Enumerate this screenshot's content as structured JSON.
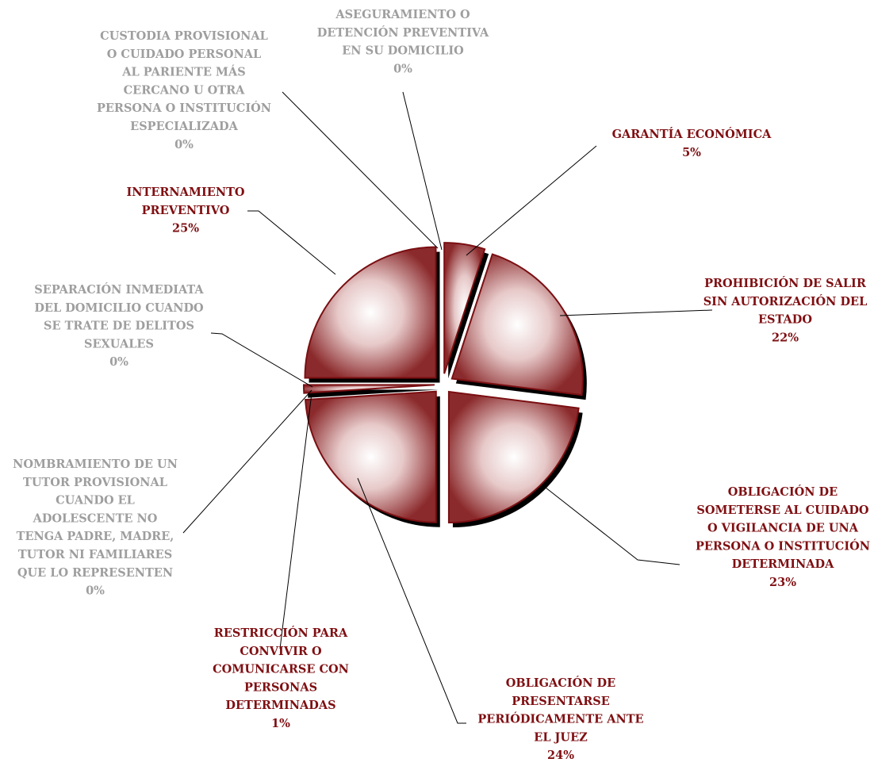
{
  "chart_data": {
    "type": "pie",
    "title": "",
    "style": "exploded 3d pie with radial gradient fill, leader-line callout labels",
    "colors": {
      "slice_edge": "#7a0f12",
      "slice_dark": "#8b2a2c",
      "slice_light": "#ffffff",
      "shadow": "#000000",
      "label_nonzero": "#7f0f12",
      "label_zero": "#9e9e9e",
      "leader": "#000000"
    },
    "slices": [
      {
        "key": "garantia",
        "lines": [
          "GARANTÍA ECONÓMICA"
        ],
        "pct_label": "5%",
        "value": 5
      },
      {
        "key": "prohibicion",
        "lines": [
          "PROHIBICIÓN DE SALIR",
          "SIN AUTORIZACIÓN DEL",
          "ESTADO"
        ],
        "pct_label": "22%",
        "value": 22
      },
      {
        "key": "obligacion_cuidado",
        "lines": [
          "OBLIGACIÓN DE",
          "SOMETERSE AL CUIDADO",
          "O VIGILANCIA DE UNA",
          "PERSONA O INSTITUCIÓN",
          "DETERMINADA"
        ],
        "pct_label": "23%",
        "value": 23
      },
      {
        "key": "obligacion_presentarse",
        "lines": [
          "OBLIGACIÓN DE",
          "PRESENTARSE",
          "PERIÓDICAMENTE ANTE",
          "EL JUEZ"
        ],
        "pct_label": "24%",
        "value": 24
      },
      {
        "key": "restriccion",
        "lines": [
          "RESTRICCIÓN PARA",
          "CONVIVIR O",
          "COMUNICARSE CON",
          "PERSONAS",
          "DETERMINADAS"
        ],
        "pct_label": "1%",
        "value": 1
      },
      {
        "key": "nombramiento",
        "lines": [
          "NOMBRAMIENTO DE UN",
          "TUTOR PROVISIONAL",
          "CUANDO EL",
          "ADOLESCENTE NO",
          "TENGA PADRE, MADRE,",
          "TUTOR NI FAMILIARES",
          "QUE LO REPRESENTEN"
        ],
        "pct_label": "0%",
        "value": 0
      },
      {
        "key": "separacion",
        "lines": [
          "SEPARACIÓN INMEDIATA",
          "DEL DOMICILIO CUANDO",
          "SE TRATE DE DELITOS",
          "SEXUALES"
        ],
        "pct_label": "0%",
        "value": 0
      },
      {
        "key": "internamiento",
        "lines": [
          "INTERNAMIENTO",
          "PREVENTIVO"
        ],
        "pct_label": "25%",
        "value": 25
      },
      {
        "key": "custodia",
        "lines": [
          "CUSTODIA PROVISIONAL",
          "O CUIDADO PERSONAL",
          "AL PARIENTE MÁS",
          "CERCANO U OTRA",
          "PERSONA O INSTITUCIÓN",
          "ESPECIALIZADA"
        ],
        "pct_label": "0%",
        "value": 0
      },
      {
        "key": "aseguramiento",
        "lines": [
          "ASEGURAMIENTO O",
          "DETENCIÓN PREVENTIVA",
          "EN SU DOMICILIO"
        ],
        "pct_label": "0%",
        "value": 0
      }
    ]
  }
}
